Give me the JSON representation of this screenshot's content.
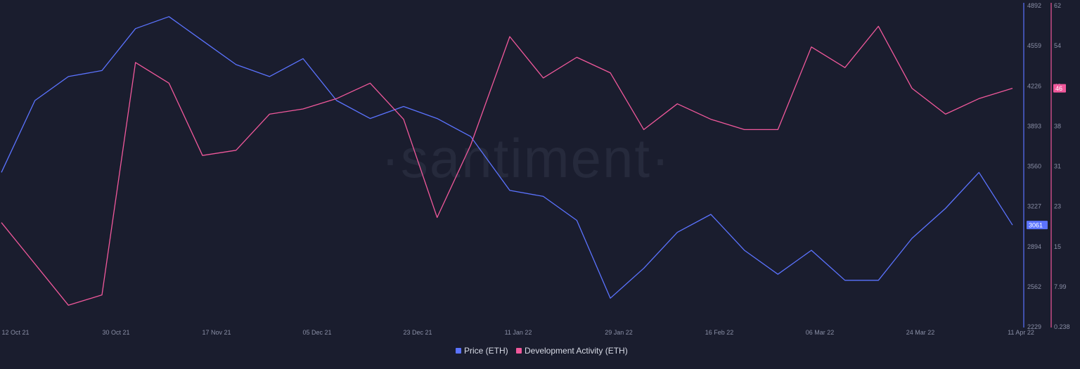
{
  "watermark": "·santiment·",
  "colors": {
    "background": "#1a1d2e",
    "price": "#5b73ff",
    "dev_activity": "#f0589b",
    "axis_text": "#8a8fa6"
  },
  "chart_data": {
    "type": "line",
    "title": "",
    "x_tick_labels": [
      "12 Oct 21",
      "30 Oct 21",
      "17 Nov 21",
      "05 Dec 21",
      "23 Dec 21",
      "11 Jan 22",
      "29 Jan 22",
      "16 Feb 22",
      "06 Mar 22",
      "24 Mar 22",
      "11 Apr 22"
    ],
    "x": [
      "2021-10-12",
      "2021-10-18",
      "2021-10-24",
      "2021-10-30",
      "2021-11-05",
      "2021-11-11",
      "2021-11-17",
      "2021-11-23",
      "2021-11-29",
      "2021-12-05",
      "2021-12-11",
      "2021-12-17",
      "2021-12-23",
      "2021-12-29",
      "2022-01-04",
      "2022-01-11",
      "2022-01-17",
      "2022-01-23",
      "2022-01-29",
      "2022-02-04",
      "2022-02-10",
      "2022-02-16",
      "2022-02-22",
      "2022-02-28",
      "2022-03-06",
      "2022-03-12",
      "2022-03-18",
      "2022-03-24",
      "2022-03-30",
      "2022-04-05",
      "2022-04-11"
    ],
    "series": [
      {
        "name": "Price (ETH)",
        "axis": "right-outer",
        "current_value_label": "3061",
        "values": [
          3500,
          4100,
          4300,
          4350,
          4700,
          4800,
          4600,
          4400,
          4300,
          4450,
          4100,
          3950,
          4050,
          3950,
          3800,
          3350,
          3300,
          3100,
          2450,
          2700,
          3000,
          3150,
          2850,
          2650,
          2850,
          2600,
          2600,
          2950,
          3200,
          3500,
          3061
        ]
      },
      {
        "name": "Development Activity (ETH)",
        "axis": "right-inner",
        "current_value_label": "46",
        "values": [
          20,
          12,
          4,
          6,
          51,
          47,
          33,
          34,
          41,
          42,
          44,
          47,
          40,
          21,
          35,
          56,
          48,
          52,
          49,
          38,
          43,
          40,
          38,
          38,
          54,
          50,
          58,
          46,
          41,
          44,
          46
        ]
      }
    ],
    "y_axes": [
      {
        "id": "price",
        "tick_labels": [
          "4892",
          "4559",
          "4226",
          "3893",
          "3560",
          "3227",
          "2894",
          "2562",
          "2229"
        ],
        "ylim": [
          2229,
          4892
        ]
      },
      {
        "id": "dev_activity",
        "tick_labels": [
          "62",
          "54",
          "46",
          "38",
          "31",
          "23",
          "15",
          "7.99",
          "0.238"
        ],
        "ylim": [
          0.238,
          62
        ]
      }
    ],
    "legend": [
      "Price (ETH)",
      "Development Activity (ETH)"
    ],
    "legend_position": "bottom-center",
    "grid": false
  }
}
